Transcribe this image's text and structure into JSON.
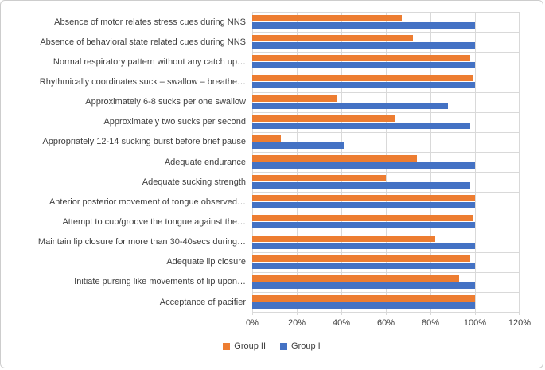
{
  "chart_data": {
    "type": "bar",
    "orientation": "horizontal",
    "title": "",
    "xlabel": "",
    "ylabel": "",
    "xlim": [
      0,
      120
    ],
    "x_tick_labels": [
      "0%",
      "20%",
      "40%",
      "60%",
      "80%",
      "100%",
      "120%"
    ],
    "grid": true,
    "legend_position": "bottom",
    "categories": [
      "Absence of motor relates stress cues during NNS",
      "Absence of behavioral state related cues during NNS",
      "Normal respiratory pattern without any catch up…",
      "Rhythmically coordinates suck – swallow – breathe…",
      "Approximately 6-8 sucks per one swallow",
      "Approximately two sucks per second",
      "Appropriately 12-14 sucking burst before brief pause",
      "Adequate endurance",
      "Adequate sucking strength",
      "Anterior posterior movement of tongue observed…",
      "Attempt to cup/groove the tongue against the…",
      "Maintain lip closure for more than 30-40secs during…",
      "Adequate lip closure",
      "Initiate pursing like movements of lip upon…",
      "Acceptance of pacifier"
    ],
    "series": [
      {
        "name": "Group II",
        "color": "#ED7D31",
        "values": [
          67,
          72,
          98,
          99,
          38,
          64,
          13,
          74,
          60,
          100,
          99,
          82,
          98,
          93,
          100
        ]
      },
      {
        "name": "Group I",
        "color": "#4472C4",
        "values": [
          100,
          100,
          100,
          100,
          88,
          98,
          41,
          100,
          98,
          100,
          100,
          100,
          100,
          100,
          100
        ]
      }
    ],
    "colors": {
      "gridline": "#D9D9D9",
      "axis_text": "#3F3F3F",
      "figure_border": "#CDCDCD"
    }
  }
}
